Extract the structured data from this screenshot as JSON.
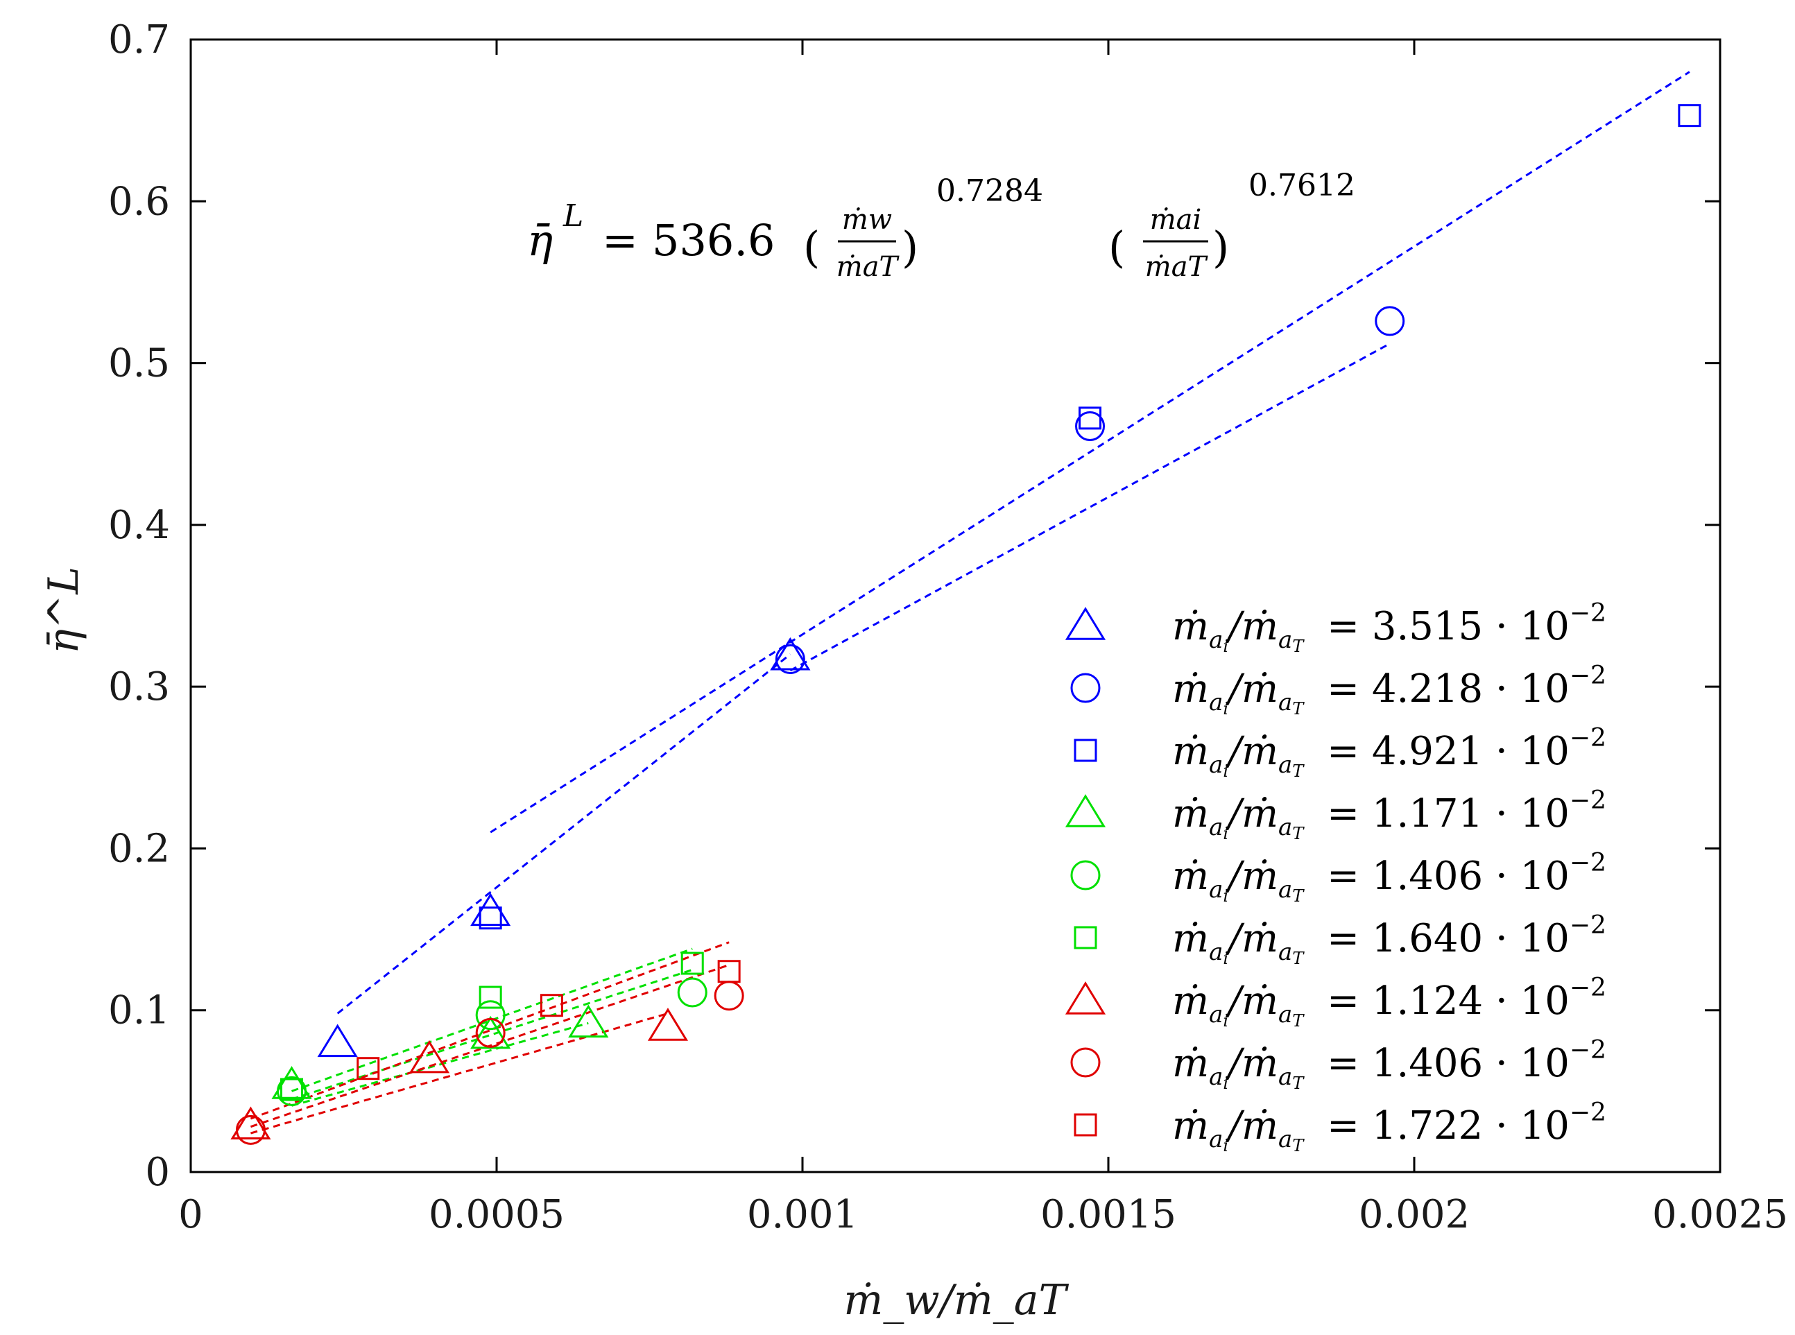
{
  "chart_data": {
    "type": "scatter",
    "title": "",
    "xlabel": "ṁ_w/ṁ_aT",
    "ylabel": "η̄^L",
    "xlim": [
      0,
      0.0025
    ],
    "ylim": [
      0,
      0.7
    ],
    "x_ticks": [
      0,
      0.0005,
      0.001,
      0.0015,
      0.002,
      0.0025
    ],
    "x_tick_labels": [
      "0",
      "0.0005",
      "0.001",
      "0.0015",
      "0.002",
      "0.0025"
    ],
    "y_ticks": [
      0,
      0.1,
      0.2,
      0.3,
      0.4,
      0.5,
      0.6,
      0.7
    ],
    "y_tick_labels": [
      "0",
      "0.1",
      "0.2",
      "0.3",
      "0.4",
      "0.5",
      "0.6",
      "0.7"
    ],
    "grid": false,
    "legend_position": "bottom-right",
    "annotation": {
      "lhs": "η̄",
      "lhs_sup": "L",
      "equals": "=",
      "coefficient": "536.6",
      "frac1_num": "ṁw",
      "frac1_den": "ṁaT",
      "exp1": "0.7284",
      "frac2_num": "ṁai",
      "frac2_den": "ṁaT",
      "exp2": "0.7612"
    },
    "series": [
      {
        "name": "ṁai/ṁaT = 3.515 · 10⁻²",
        "legend_prefix": "ṁ",
        "legend_value": "= 3.515 · 10",
        "legend_exp": "−2",
        "color": "#0000ff",
        "marker": "triangle",
        "points": [
          [
            0.00024,
            0.08
          ],
          [
            0.00049,
            0.161
          ],
          [
            0.00098,
            0.319
          ]
        ],
        "fit": [
          [
            0.00024,
            0.098
          ],
          [
            0.00098,
            0.32
          ]
        ]
      },
      {
        "name": "ṁai/ṁaT = 4.218 · 10⁻²",
        "legend_prefix": "ṁ",
        "legend_value": "= 4.218 · 10",
        "legend_exp": "−2",
        "color": "#0000ff",
        "marker": "circle",
        "points": [
          [
            0.00098,
            0.317
          ],
          [
            0.00147,
            0.461
          ],
          [
            0.00196,
            0.526
          ]
        ],
        "fit": [
          [
            0.00098,
            0.31
          ],
          [
            0.00196,
            0.512
          ]
        ]
      },
      {
        "name": "ṁai/ṁaT = 4.921 · 10⁻²",
        "legend_prefix": "ṁ",
        "legend_value": "= 4.921 · 10",
        "legend_exp": "−2",
        "color": "#0000ff",
        "marker": "square",
        "points": [
          [
            0.00049,
            0.157
          ],
          [
            0.00147,
            0.466
          ],
          [
            0.00245,
            0.653
          ]
        ],
        "fit": [
          [
            0.00049,
            0.21
          ],
          [
            0.00245,
            0.68
          ]
        ]
      },
      {
        "name": "ṁai/ṁaT = 1.171 · 10⁻²",
        "legend_prefix": "ṁ",
        "legend_value": "= 1.171 · 10",
        "legend_exp": "−2",
        "color": "#00e000",
        "marker": "triangle",
        "points": [
          [
            0.000165,
            0.054
          ],
          [
            0.00049,
            0.085
          ],
          [
            0.00065,
            0.092
          ]
        ],
        "fit": [
          [
            0.000165,
            0.041
          ],
          [
            0.00065,
            0.092
          ]
        ]
      },
      {
        "name": "ṁai/ṁaT = 1.406 · 10⁻²",
        "legend_prefix": "ṁ",
        "legend_value": "= 1.406 · 10",
        "legend_exp": "−2",
        "color": "#00e000",
        "marker": "circle",
        "points": [
          [
            0.000165,
            0.05
          ],
          [
            0.00049,
            0.097
          ],
          [
            0.00082,
            0.111
          ]
        ],
        "fit": [
          [
            0.000165,
            0.045
          ],
          [
            0.00082,
            0.125
          ]
        ]
      },
      {
        "name": "ṁai/ṁaT = 1.640 · 10⁻²",
        "legend_prefix": "ṁ",
        "legend_value": "= 1.640 · 10",
        "legend_exp": "−2",
        "color": "#00e000",
        "marker": "square",
        "points": [
          [
            0.000165,
            0.051
          ],
          [
            0.00049,
            0.108
          ],
          [
            0.00082,
            0.129
          ]
        ],
        "fit": [
          [
            0.000165,
            0.05
          ],
          [
            0.00082,
            0.138
          ]
        ]
      },
      {
        "name": "ṁai/ṁaT = 1.124 · 10⁻²",
        "legend_prefix": "ṁ",
        "legend_value": "= 1.124 · 10",
        "legend_exp": "−2",
        "color": "#e00000",
        "marker": "triangle",
        "points": [
          [
            9.8e-05,
            0.029
          ],
          [
            0.00039,
            0.07
          ],
          [
            0.00078,
            0.09
          ]
        ],
        "fit": [
          [
            9.8e-05,
            0.024
          ],
          [
            0.00078,
            0.098
          ]
        ]
      },
      {
        "name": "ṁai/ṁaT = 1.406 · 10⁻²",
        "legend_prefix": "ṁ",
        "legend_value": "= 1.406 · 10",
        "legend_exp": "−2",
        "color": "#e00000",
        "marker": "circle",
        "points": [
          [
            9.8e-05,
            0.026
          ],
          [
            0.00049,
            0.086
          ],
          [
            0.00088,
            0.109
          ]
        ],
        "fit": [
          [
            9.8e-05,
            0.028
          ],
          [
            0.00088,
            0.128
          ]
        ]
      },
      {
        "name": "ṁai/ṁaT = 1.722 · 10⁻²",
        "legend_prefix": "ṁ",
        "legend_value": "= 1.722 · 10",
        "legend_exp": "−2",
        "color": "#e00000",
        "marker": "square",
        "points": [
          [
            0.00029,
            0.064
          ],
          [
            0.00059,
            0.103
          ],
          [
            0.00088,
            0.124
          ]
        ],
        "fit": [
          [
            9.8e-05,
            0.033
          ],
          [
            0.00088,
            0.142
          ]
        ]
      }
    ]
  }
}
